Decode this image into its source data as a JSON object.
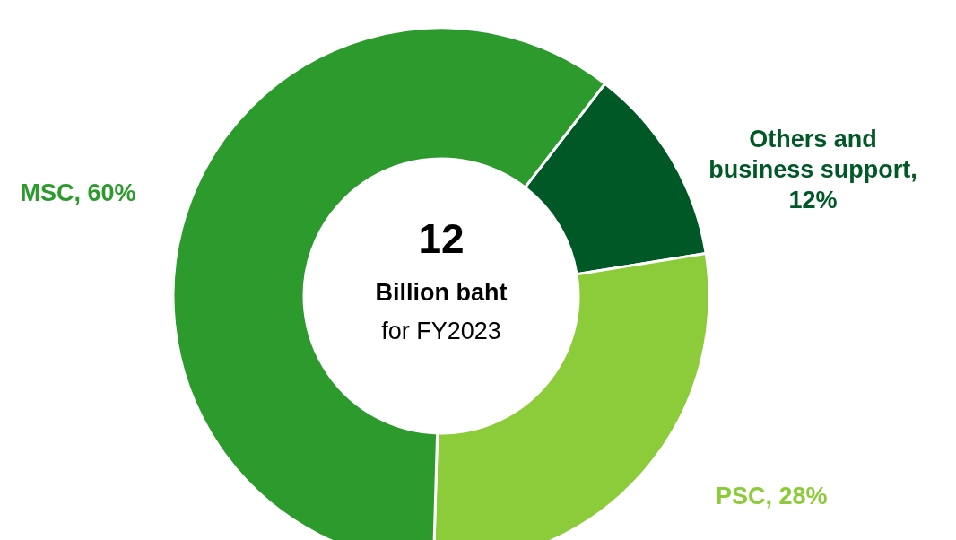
{
  "chart_data": {
    "type": "donut",
    "categories": [
      "Others and business support, 12%",
      "PSC, 28%",
      "MSC, 60%"
    ],
    "values": [
      12,
      28,
      60
    ],
    "colors": [
      "#005826",
      "#8ccc3a",
      "#2c9a2c"
    ],
    "annotations": [
      "12",
      "Billion baht",
      "for FY2023"
    ]
  }
}
